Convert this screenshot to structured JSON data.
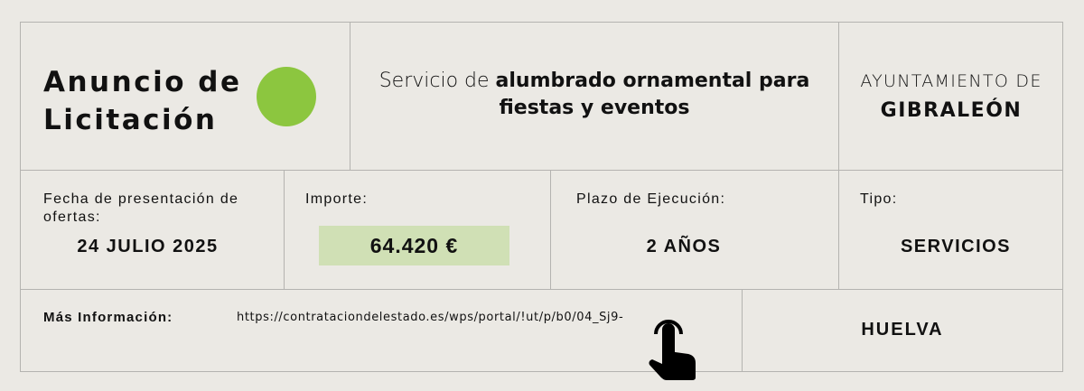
{
  "header": {
    "title_line1": "Anuncio de",
    "title_line2": "Licitación",
    "accent_color": "#8cc63f",
    "service_prefix": "Servicio de ",
    "service_bold": "alumbrado ornamental para fiestas y eventos",
    "authority_line1": "AYUNTAMIENTO DE",
    "authority_line2": "GIBRALEÓN"
  },
  "details": {
    "date_label": "Fecha de presentación de ofertas:",
    "date_value": "24 JULIO 2025",
    "amount_label": "Importe:",
    "amount_value": "64.420 €",
    "term_label": "Plazo de Ejecución:",
    "term_value": "2 AÑOS",
    "type_label": "Tipo:",
    "type_value": "SERVICIOS"
  },
  "footer": {
    "info_label": "Más Información:",
    "info_url": "https://contrataciondelestado.es/wps/portal/!ut/p/b0/04_Sj9-",
    "pointer_icon": "hand-pointer-icon",
    "province": "HUELVA"
  }
}
